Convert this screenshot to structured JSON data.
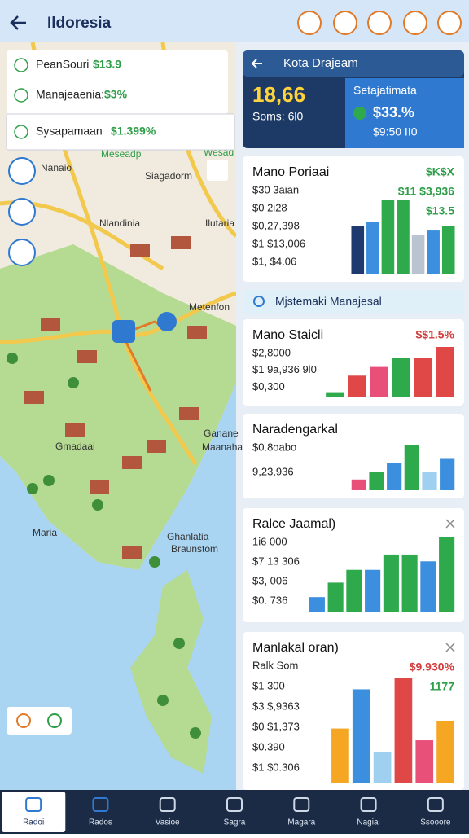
{
  "header": {
    "title": "Ildoresia"
  },
  "map": {
    "overlay_rows": [
      {
        "label": "PeanSouri",
        "value": "$13.9"
      },
      {
        "label": "Manajeaenia:",
        "value": "$3%"
      },
      {
        "label": "Sysapamaan",
        "value": "$1.399%"
      }
    ],
    "labels": [
      "Meseadp",
      "Wesad",
      "Nanaio",
      "Siagadorm",
      "Nlandinia",
      "Ilutaria",
      "Metenfon",
      "Gmadaai",
      "Ganane",
      "Maanaha",
      "Maria",
      "Ghanlatia",
      "Braunstom"
    ]
  },
  "summary": {
    "title": "Kota Drajeam",
    "value": "18,66",
    "sub": "Soms: 6l0",
    "right_title": "Setajatimata",
    "right_value": "$33.%",
    "right_sub": "$9:50 II0"
  },
  "search": {
    "placeholder": "Mjstemaki Manajesal"
  },
  "cards": [
    {
      "title": "Mano Poriaai",
      "badge": "$K$X",
      "badge_color": "#2e9e48",
      "lines": [
        "$30 3aian",
        "$0 2i28",
        "$0,27,398",
        "$1 $13,006",
        "$1, $4.06"
      ],
      "values": [
        "$11 $3,936",
        "$13.5"
      ],
      "bars": [
        {
          "value": 55,
          "color": "#1f3a6e"
        },
        {
          "value": 60,
          "color": "#3b8fde"
        },
        {
          "value": 85,
          "color": "#2eaa4c"
        },
        {
          "value": 85,
          "color": "#2eaa4c"
        },
        {
          "value": 45,
          "color": "#b9c4d0"
        },
        {
          "value": 50,
          "color": "#3b8fde"
        },
        {
          "value": 55,
          "color": "#2eaa4c"
        }
      ]
    },
    {
      "title": "Mano Staicli",
      "badge": "$$1.5%",
      "badge_color": "#d23c3c",
      "lines": [
        "$2,8000",
        "$1 9a,936 9l0",
        "$0,300"
      ],
      "bars": [
        {
          "value": 6,
          "color": "#2eaa4c"
        },
        {
          "value": 25,
          "color": "#e04848"
        },
        {
          "value": 35,
          "color": "#e8507a"
        },
        {
          "value": 45,
          "color": "#2eaa4c"
        },
        {
          "value": 45,
          "color": "#e04848"
        },
        {
          "value": 58,
          "color": "#e04848"
        }
      ]
    },
    {
      "title": "Naradengarkal",
      "lines": [
        "$0.8oabo",
        "9,23,936"
      ],
      "bars": [
        {
          "value": 12,
          "color": "#e8507a"
        },
        {
          "value": 20,
          "color": "#2eaa4c"
        },
        {
          "value": 30,
          "color": "#3b8fde"
        },
        {
          "value": 50,
          "color": "#2eaa4c"
        },
        {
          "value": 20,
          "color": "#9fd0f0"
        },
        {
          "value": 35,
          "color": "#3b8fde"
        }
      ]
    },
    {
      "title": "Ralce Jaamal)",
      "lines": [
        "1i6 000",
        "$7 13 306",
        "$3, 006",
        "$0. 736"
      ],
      "bars": [
        {
          "value": 18,
          "color": "#3b8fde"
        },
        {
          "value": 35,
          "color": "#2eaa4c"
        },
        {
          "value": 50,
          "color": "#2eaa4c"
        },
        {
          "value": 50,
          "color": "#3b8fde"
        },
        {
          "value": 68,
          "color": "#2eaa4c"
        },
        {
          "value": 68,
          "color": "#2eaa4c"
        },
        {
          "value": 60,
          "color": "#3b8fde"
        },
        {
          "value": 88,
          "color": "#2eaa4c"
        }
      ]
    },
    {
      "title": "Manlakal oran)",
      "lines": [
        "Ralk Som",
        "$1 300",
        "$3 $,9363",
        "$0 $1,373",
        "$0.390",
        "$1 $0.306"
      ],
      "values": [
        "$9.930%",
        "1177"
      ],
      "bars": [
        {
          "value": 70,
          "color": "#f5a623"
        },
        {
          "value": 120,
          "color": "#3b8fde"
        },
        {
          "value": 40,
          "color": "#9fd0f0"
        },
        {
          "value": 135,
          "color": "#e04848"
        },
        {
          "value": 55,
          "color": "#e8507a"
        },
        {
          "value": 80,
          "color": "#f5a623"
        }
      ]
    }
  ],
  "nav": {
    "items": [
      "Radoi",
      "Rados",
      "Vasioe",
      "Sagra",
      "Magara",
      "Nagiai",
      "Ssooore"
    ]
  }
}
